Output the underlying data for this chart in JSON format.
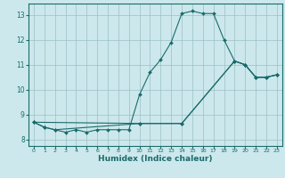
{
  "xlabel": "Humidex (Indice chaleur)",
  "bg_color": "#cce8ec",
  "grid_color": "#9bbfc4",
  "line_color": "#1a6b6b",
  "xlim": [
    -0.5,
    23.5
  ],
  "ylim": [
    7.75,
    13.45
  ],
  "xticks": [
    0,
    1,
    2,
    3,
    4,
    5,
    6,
    7,
    8,
    9,
    10,
    11,
    12,
    13,
    14,
    15,
    16,
    17,
    18,
    19,
    20,
    21,
    22,
    23
  ],
  "yticks": [
    8,
    9,
    10,
    11,
    12,
    13
  ],
  "series": [
    {
      "x": [
        0,
        1,
        2,
        3,
        4,
        5,
        6,
        7,
        8,
        9,
        10,
        11,
        12,
        13,
        14,
        15,
        16,
        17,
        18,
        19,
        20,
        21,
        22,
        23
      ],
      "y": [
        8.7,
        8.5,
        8.4,
        8.3,
        8.4,
        8.3,
        8.4,
        8.4,
        8.4,
        8.4,
        9.8,
        10.7,
        11.2,
        11.9,
        13.05,
        13.15,
        13.05,
        13.05,
        12.0,
        11.15,
        11.0,
        10.5,
        10.5,
        10.6
      ]
    },
    {
      "x": [
        0,
        1,
        2,
        10,
        14,
        19,
        20,
        21,
        22,
        23
      ],
      "y": [
        8.7,
        8.5,
        8.4,
        8.65,
        8.65,
        11.15,
        11.0,
        10.5,
        10.5,
        10.6
      ]
    },
    {
      "x": [
        0,
        10,
        14,
        19,
        20,
        21,
        22,
        23
      ],
      "y": [
        8.7,
        8.65,
        8.65,
        11.15,
        11.0,
        10.5,
        10.5,
        10.6
      ]
    }
  ]
}
